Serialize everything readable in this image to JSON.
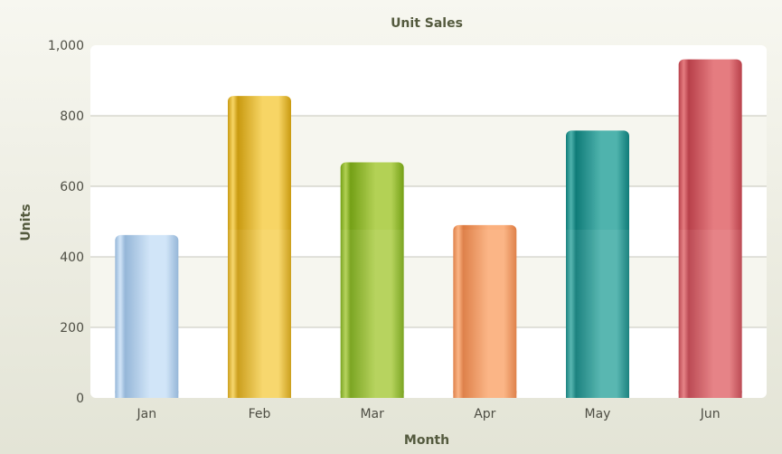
{
  "chart_data": {
    "type": "bar",
    "title": "Unit Sales",
    "xlabel": "Month",
    "ylabel": "Units",
    "categories": [
      "Jan",
      "Feb",
      "Mar",
      "Apr",
      "May",
      "Jun"
    ],
    "values": [
      462,
      856,
      668,
      490,
      758,
      960
    ],
    "ylim": [
      0,
      1000
    ],
    "yticks": [
      0,
      200,
      400,
      600,
      800,
      1000
    ],
    "ytick_labels": [
      "0",
      "200",
      "400",
      "600",
      "800",
      "1,000"
    ],
    "grid": true,
    "legend": "none",
    "bar_colors": [
      {
        "dark": "#8fb2d6",
        "light": "#cfe4f8"
      },
      {
        "dark": "#c99a10",
        "light": "#f7d565"
      },
      {
        "dark": "#74a016",
        "light": "#b3d155"
      },
      {
        "dark": "#dd7a40",
        "light": "#fbb17f"
      },
      {
        "dark": "#0f7b78",
        "light": "#4fb3ad"
      },
      {
        "dark": "#b8404a",
        "light": "#e57c80"
      }
    ]
  }
}
